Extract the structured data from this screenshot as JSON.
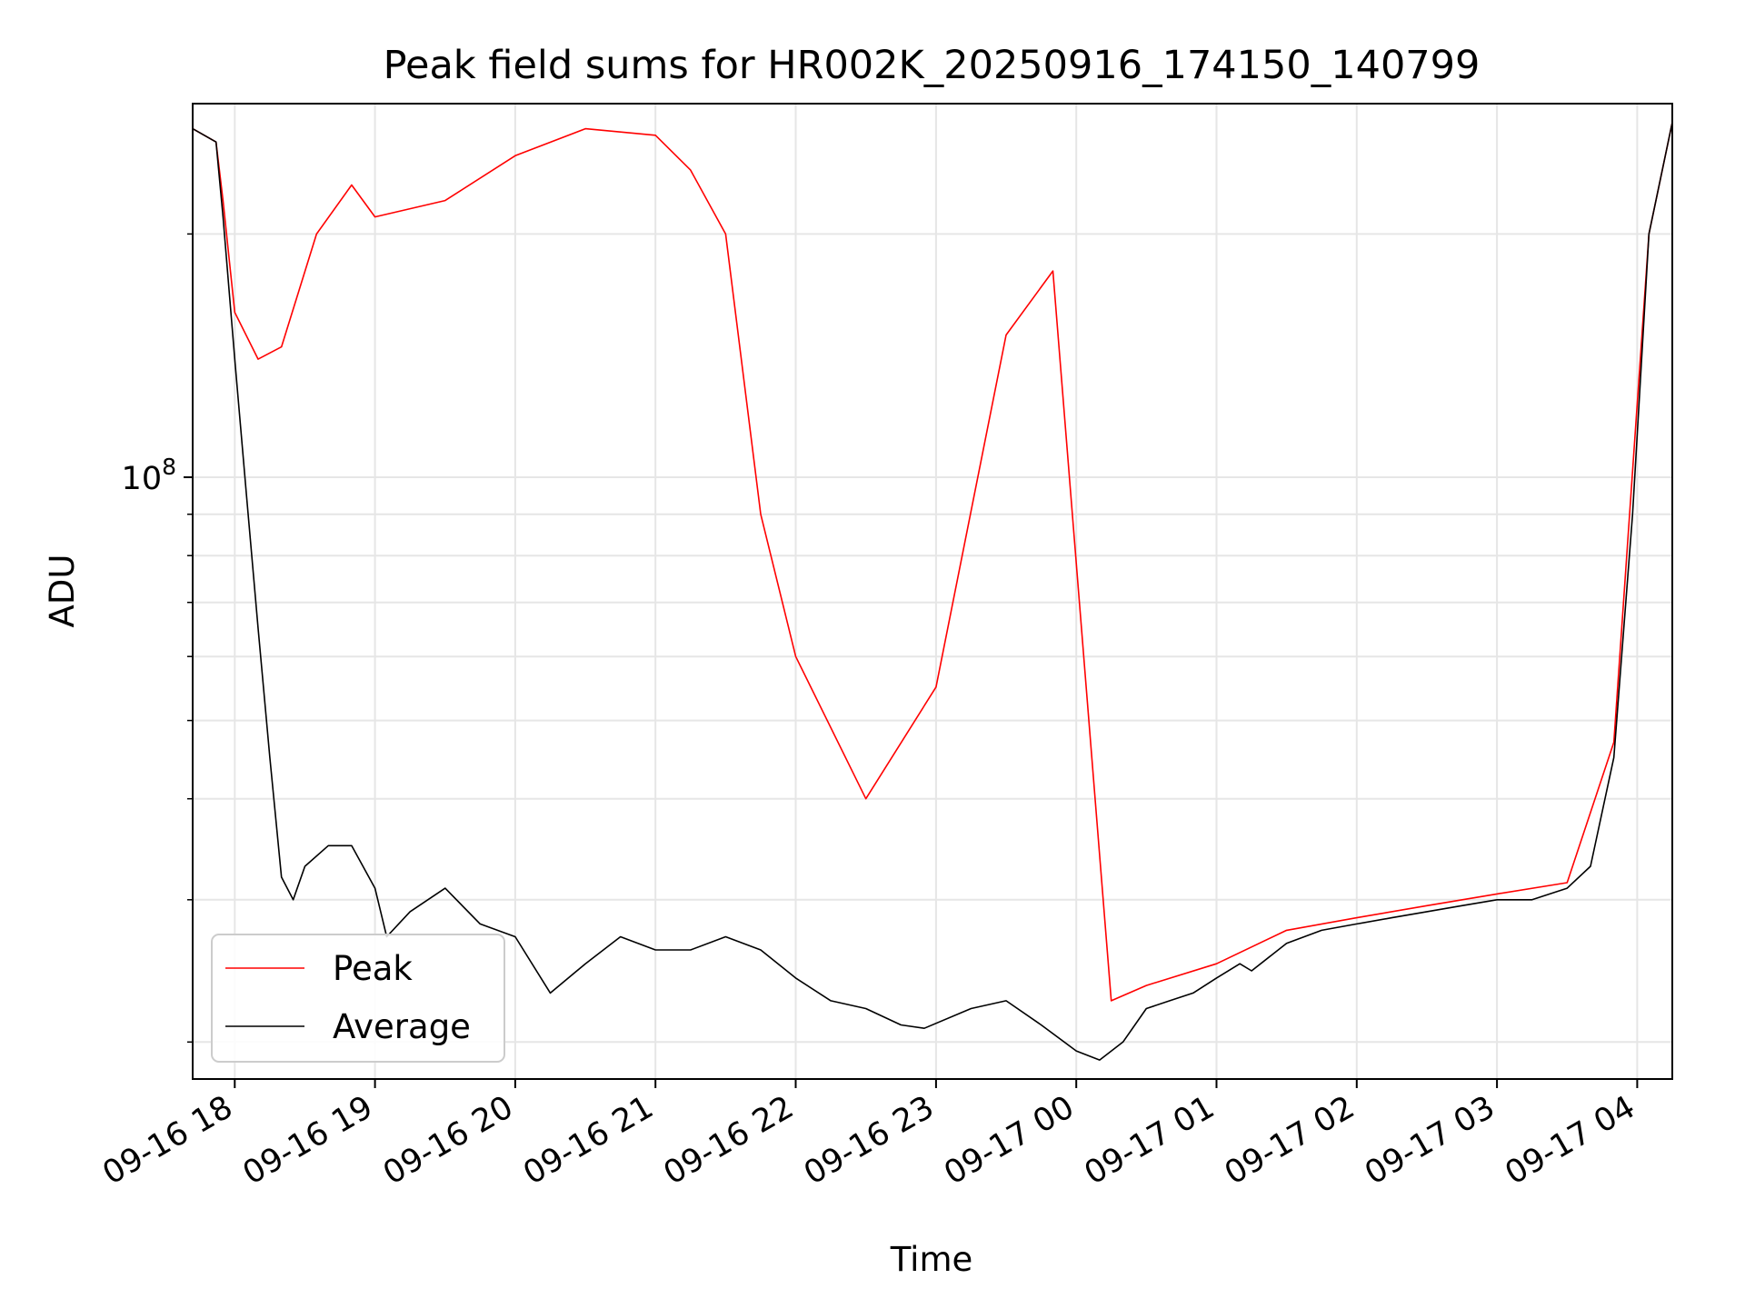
{
  "chart_data": {
    "type": "line",
    "title": "Peak field sums for HR002K_20250916_174150_140799",
    "xlabel": "Time",
    "ylabel": "ADU",
    "y_scale": "log",
    "ylim": [
      18000000,
      290000000
    ],
    "xlim": [
      "2025-09-16 17:42",
      "2025-09-17 04:15"
    ],
    "grid": true,
    "legend_position": "lower-left",
    "x_ticks": [
      {
        "value": "2025-09-16 18:00",
        "label": "09-16 18"
      },
      {
        "value": "2025-09-16 19:00",
        "label": "09-16 19"
      },
      {
        "value": "2025-09-16 20:00",
        "label": "09-16 20"
      },
      {
        "value": "2025-09-16 21:00",
        "label": "09-16 21"
      },
      {
        "value": "2025-09-16 22:00",
        "label": "09-16 22"
      },
      {
        "value": "2025-09-16 23:00",
        "label": "09-16 23"
      },
      {
        "value": "2025-09-17 00:00",
        "label": "09-17 00"
      },
      {
        "value": "2025-09-17 01:00",
        "label": "09-17 01"
      },
      {
        "value": "2025-09-17 02:00",
        "label": "09-17 02"
      },
      {
        "value": "2025-09-17 03:00",
        "label": "09-17 03"
      },
      {
        "value": "2025-09-17 04:00",
        "label": "09-17 04"
      }
    ],
    "y_ticks": [
      {
        "value": 100000000,
        "base": "10",
        "exponent": "8"
      }
    ],
    "series": [
      {
        "name": "Average",
        "color": "#000000",
        "x": [
          "2025-09-16 17:42",
          "2025-09-16 17:52",
          "2025-09-16 17:55",
          "2025-09-16 18:00",
          "2025-09-16 18:05",
          "2025-09-16 18:10",
          "2025-09-16 18:15",
          "2025-09-16 18:20",
          "2025-09-16 18:25",
          "2025-09-16 18:30",
          "2025-09-16 18:40",
          "2025-09-16 18:50",
          "2025-09-16 19:00",
          "2025-09-16 19:05",
          "2025-09-16 19:15",
          "2025-09-16 19:30",
          "2025-09-16 19:45",
          "2025-09-16 20:00",
          "2025-09-16 20:15",
          "2025-09-16 20:30",
          "2025-09-16 20:45",
          "2025-09-16 21:00",
          "2025-09-16 21:15",
          "2025-09-16 21:30",
          "2025-09-16 21:45",
          "2025-09-16 22:00",
          "2025-09-16 22:15",
          "2025-09-16 22:30",
          "2025-09-16 22:45",
          "2025-09-16 22:55",
          "2025-09-16 23:15",
          "2025-09-16 23:30",
          "2025-09-16 23:45",
          "2025-09-17 00:00",
          "2025-09-17 00:10",
          "2025-09-17 00:20",
          "2025-09-17 00:30",
          "2025-09-17 00:40",
          "2025-09-17 00:50",
          "2025-09-17 01:00",
          "2025-09-17 01:10",
          "2025-09-17 01:15",
          "2025-09-17 01:30",
          "2025-09-17 01:45",
          "2025-09-17 02:00",
          "2025-09-17 02:15",
          "2025-09-17 02:30",
          "2025-09-17 02:45",
          "2025-09-17 03:00",
          "2025-09-17 03:15",
          "2025-09-17 03:30",
          "2025-09-17 03:40",
          "2025-09-17 03:50",
          "2025-09-17 03:58",
          "2025-09-17 04:05",
          "2025-09-17 04:15"
        ],
        "values": [
          270000000,
          260000000,
          210000000,
          140000000,
          95000000,
          65000000,
          45000000,
          32000000,
          30000000,
          33000000,
          35000000,
          35000000,
          31000000,
          27000000,
          29000000,
          31000000,
          28000000,
          27000000,
          23000000,
          25000000,
          27000000,
          26000000,
          26000000,
          27000000,
          26000000,
          24000000,
          22500000,
          22000000,
          21000000,
          20800000,
          22000000,
          22500000,
          21000000,
          19500000,
          19000000,
          20000000,
          22000000,
          22500000,
          23000000,
          24000000,
          25000000,
          24500000,
          26500000,
          27500000,
          28000000,
          28500000,
          29000000,
          29500000,
          30000000,
          30000000,
          31000000,
          33000000,
          45000000,
          90000000,
          200000000,
          275000000
        ]
      },
      {
        "name": "Peak",
        "color": "#ff0000",
        "x": [
          "2025-09-16 17:42",
          "2025-09-16 17:52",
          "2025-09-16 17:55",
          "2025-09-16 18:00",
          "2025-09-16 18:10",
          "2025-09-16 18:20",
          "2025-09-16 18:35",
          "2025-09-16 18:50",
          "2025-09-16 19:00",
          "2025-09-16 19:30",
          "2025-09-16 20:00",
          "2025-09-16 20:30",
          "2025-09-16 21:00",
          "2025-09-16 21:15",
          "2025-09-16 21:30",
          "2025-09-16 21:45",
          "2025-09-16 22:00",
          "2025-09-16 22:30",
          "2025-09-16 23:00",
          "2025-09-16 23:30",
          "2025-09-16 23:50",
          "2025-09-17 00:15",
          "2025-09-17 00:30",
          "2025-09-17 01:00",
          "2025-09-17 01:30",
          "2025-09-17 02:00",
          "2025-09-17 02:30",
          "2025-09-17 03:00",
          "2025-09-17 03:30",
          "2025-09-17 03:50",
          "2025-09-17 04:05",
          "2025-09-17 04:15"
        ],
        "values": [
          270000000,
          260000000,
          220000000,
          160000000,
          140000000,
          145000000,
          200000000,
          230000000,
          210000000,
          220000000,
          250000000,
          270000000,
          265000000,
          240000000,
          200000000,
          90000000,
          60000000,
          40000000,
          55000000,
          150000000,
          180000000,
          22500000,
          23500000,
          25000000,
          27500000,
          28500000,
          29500000,
          30500000,
          31500000,
          47000000,
          200000000,
          275000000
        ]
      }
    ]
  }
}
